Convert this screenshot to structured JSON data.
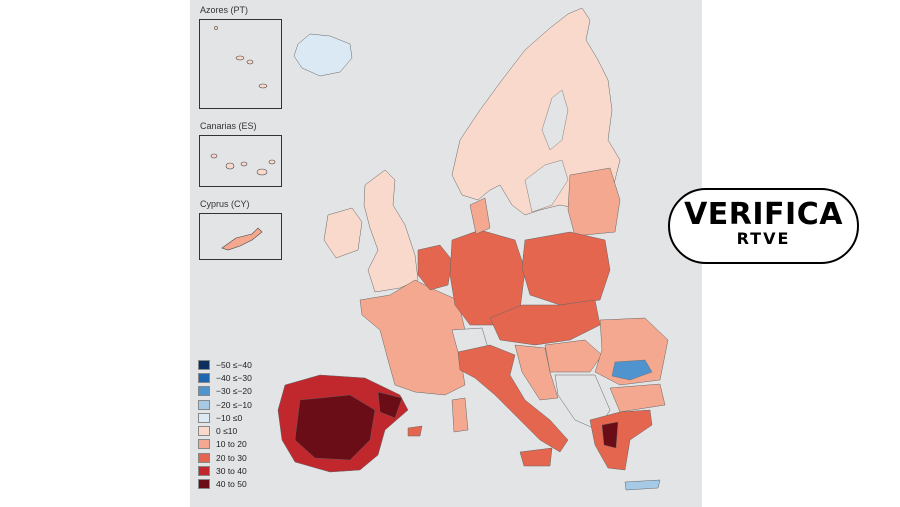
{
  "insets": {
    "azores": "Azores (PT)",
    "canarias": "Canarias (ES)",
    "cyprus": "Cyprus (CY)"
  },
  "legend": [
    {
      "label": "−50 ≤−40",
      "color": "#0b2f5e"
    },
    {
      "label": "−40 ≤−30",
      "color": "#1f66b0"
    },
    {
      "label": "−30 ≤−20",
      "color": "#4f93cf"
    },
    {
      "label": "−20 ≤−10",
      "color": "#a6c9e6"
    },
    {
      "label": "−10 ≤0",
      "color": "#dbe9f5"
    },
    {
      "label": "0 ≤10",
      "color": "#f9d9cb"
    },
    {
      "label": "10 to 20",
      "color": "#f3a88f"
    },
    {
      "label": "20 to 30",
      "color": "#e4664e"
    },
    {
      "label": "30 to 40",
      "color": "#c0282d"
    },
    {
      "label": "40 to 50",
      "color": "#6b0d17"
    }
  ],
  "badge": {
    "main": "VERIFICA",
    "sub": "RTVE"
  }
}
